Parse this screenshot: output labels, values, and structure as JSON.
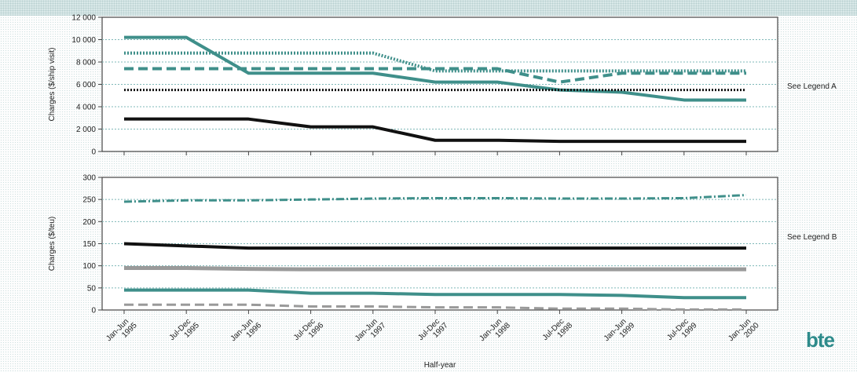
{
  "chart_data": [
    {
      "type": "line",
      "ylabel": "Charges ($/ship visit)",
      "ylim": [
        0,
        12000
      ],
      "yticks": [
        "0",
        "2 000",
        "4 000",
        "6 000",
        "8 000",
        "10 000",
        "12 000"
      ],
      "ytick_values": [
        0,
        2000,
        4000,
        6000,
        8000,
        10000,
        12000
      ],
      "legend_note": "See Legend A",
      "series": [
        {
          "values": [
            10200,
            10200,
            7000,
            7000,
            7000,
            6200,
            6200,
            5500,
            5300,
            4600,
            4600
          ],
          "color": "#3f8f8a",
          "style": "solid",
          "width": 4
        },
        {
          "values": [
            8800,
            8800,
            8800,
            8800,
            8800,
            7200,
            7200,
            7200,
            7200,
            7200,
            7200
          ],
          "color": "#3f8f8a",
          "style": "dotted",
          "width": 4
        },
        {
          "values": [
            7400,
            7400,
            7400,
            7400,
            7400,
            7400,
            7400,
            6200,
            7000,
            7000,
            7000
          ],
          "color": "#3f8f8a",
          "style": "dashed",
          "width": 4
        },
        {
          "values": [
            5500,
            5500,
            5500,
            5500,
            5500,
            5500,
            5500,
            5500,
            5500,
            5500,
            5500
          ],
          "color": "#111111",
          "style": "dotted",
          "width": 3
        },
        {
          "values": [
            2900,
            2900,
            2900,
            2200,
            2200,
            1000,
            1000,
            900,
            900,
            900,
            900
          ],
          "color": "#111111",
          "style": "solid",
          "width": 4
        }
      ]
    },
    {
      "type": "line",
      "ylabel": "Charges ($/teu)",
      "ylim": [
        0,
        300
      ],
      "yticks": [
        "0",
        "50",
        "100",
        "150",
        "200",
        "250",
        "300"
      ],
      "ytick_values": [
        0,
        50,
        100,
        150,
        200,
        250,
        300
      ],
      "legend_note": "See Legend B",
      "series": [
        {
          "values": [
            245,
            248,
            248,
            250,
            252,
            253,
            253,
            252,
            252,
            253,
            260
          ],
          "color": "#3f8f8a",
          "style": "dashdot",
          "width": 3
        },
        {
          "values": [
            150,
            145,
            140,
            140,
            140,
            140,
            140,
            140,
            140,
            140,
            140
          ],
          "color": "#111111",
          "style": "solid",
          "width": 4
        },
        {
          "values": [
            95,
            95,
            93,
            92,
            92,
            92,
            92,
            92,
            92,
            92,
            92
          ],
          "color": "#9a9a9a",
          "style": "solid",
          "width": 5
        },
        {
          "values": [
            45,
            45,
            45,
            38,
            38,
            35,
            35,
            35,
            33,
            28,
            28
          ],
          "color": "#3f8f8a",
          "style": "solid",
          "width": 4
        },
        {
          "values": [
            12,
            12,
            12,
            8,
            8,
            6,
            6,
            3,
            3,
            1,
            1
          ],
          "color": "#9a9a9a",
          "style": "dashed",
          "width": 3
        }
      ]
    }
  ],
  "x_categories": [
    [
      "Jan-Jun",
      "1995"
    ],
    [
      "Jul-Dec",
      "1995"
    ],
    [
      "Jan-Jun",
      "1996"
    ],
    [
      "Jul-Dec",
      "1996"
    ],
    [
      "Jan-Jun",
      "1997"
    ],
    [
      "Jul-Dec",
      "1997"
    ],
    [
      "Jan-Jun",
      "1998"
    ],
    [
      "Jul-Dec",
      "1998"
    ],
    [
      "Jan-Jun",
      "1999"
    ],
    [
      "Jul-Dec",
      "1999"
    ],
    [
      "Jan-Jun",
      "2000"
    ]
  ],
  "xlabel": "Half-year",
  "logo_text": "bte",
  "colors": {
    "teal": "#3f8f8a",
    "black": "#111111",
    "grey": "#9a9a9a",
    "grid": "#7fb8b8"
  }
}
